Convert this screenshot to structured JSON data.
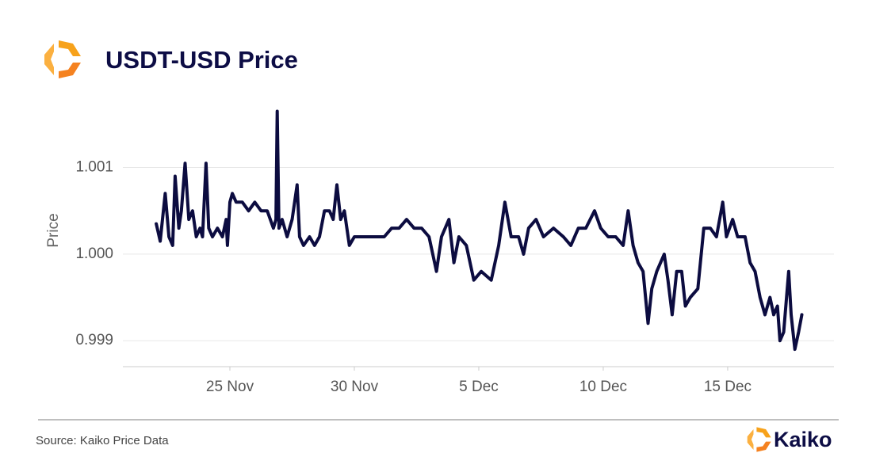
{
  "chart_data": {
    "type": "line",
    "title": "USDT-USD Price",
    "y_label": "Price",
    "source": "Source: Kaiko Price Data",
    "brand": "Kaiko",
    "grid": true,
    "xlim": [
      20.7,
      49.27
    ],
    "ylim": [
      0.9987,
      1.0017
    ],
    "xticks": [
      {
        "value": 25,
        "label": "25 Nov"
      },
      {
        "value": 30,
        "label": "30 Nov"
      },
      {
        "value": 35,
        "label": "5 Dec"
      },
      {
        "value": 40,
        "label": "10 Dec"
      },
      {
        "value": 45,
        "label": "15 Dec"
      }
    ],
    "yticks": [
      0.999,
      {
        "value": 1,
        "label": "1.000"
      },
      1.001
    ],
    "x": [
      22.04,
      22.2,
      22.4,
      22.55,
      22.7,
      22.8,
      22.95,
      23.05,
      23.2,
      23.35,
      23.5,
      23.65,
      23.8,
      23.9,
      24.04,
      24.15,
      24.3,
      24.5,
      24.7,
      24.85,
      24.9,
      25.0,
      25.1,
      25.25,
      25.5,
      25.75,
      26.0,
      26.25,
      26.5,
      26.75,
      26.85,
      26.9,
      26.97,
      27.1,
      27.3,
      27.5,
      27.7,
      27.8,
      27.96,
      28.2,
      28.4,
      28.6,
      28.8,
      29.0,
      29.15,
      29.3,
      29.45,
      29.6,
      29.8,
      30.0,
      30.3,
      30.6,
      30.9,
      31.2,
      31.5,
      31.8,
      32.1,
      32.4,
      32.7,
      33.0,
      33.3,
      33.5,
      33.8,
      34.0,
      34.2,
      34.5,
      34.8,
      35.1,
      35.5,
      35.8,
      36.05,
      36.3,
      36.6,
      36.8,
      37.0,
      37.3,
      37.6,
      38.0,
      38.4,
      38.7,
      39.0,
      39.3,
      39.65,
      39.9,
      40.2,
      40.5,
      40.8,
      41.0,
      41.2,
      41.4,
      41.6,
      41.8,
      41.95,
      42.15,
      42.45,
      42.6,
      42.77,
      42.95,
      43.15,
      43.3,
      43.5,
      43.8,
      44.04,
      44.3,
      44.55,
      44.8,
      44.95,
      45.2,
      45.4,
      45.7,
      45.9,
      46.1,
      46.3,
      46.5,
      46.7,
      46.85,
      47.0,
      47.1,
      47.25,
      47.45,
      47.55,
      47.7,
      47.85,
      47.98
    ],
    "series": [
      {
        "name": "USDT-USD",
        "color": "#0c0c40",
        "values": [
          1.00035,
          1.00015,
          1.0007,
          1.0002,
          1.0001,
          1.0009,
          1.0003,
          1.0005,
          1.00105,
          1.0004,
          1.0005,
          1.0002,
          1.0003,
          1.0002,
          1.00105,
          1.0003,
          1.0002,
          1.0003,
          1.0002,
          1.0004,
          1.0001,
          1.0006,
          1.0007,
          1.0006,
          1.0006,
          1.0005,
          1.0006,
          1.0005,
          1.0005,
          1.0003,
          1.0004,
          1.00165,
          1.0003,
          1.0004,
          1.0002,
          1.0004,
          1.0008,
          1.0002,
          1.0001,
          1.0002,
          1.0001,
          1.0002,
          1.0005,
          1.0005,
          1.0004,
          1.0008,
          1.0004,
          1.0005,
          1.0001,
          1.0002,
          1.0002,
          1.0002,
          1.0002,
          1.0002,
          1.0003,
          1.0003,
          1.0004,
          1.0003,
          1.0003,
          1.0002,
          0.9998,
          1.0002,
          1.0004,
          0.9999,
          1.0002,
          1.0001,
          0.9997,
          0.9998,
          0.9997,
          1.0001,
          1.0006,
          1.0002,
          1.0002,
          1.0,
          1.0003,
          1.0004,
          1.0002,
          1.0003,
          1.0002,
          1.0001,
          1.0003,
          1.0003,
          1.0005,
          1.0003,
          1.0002,
          1.0002,
          1.0001,
          1.0005,
          1.0001,
          0.9999,
          0.9998,
          0.9992,
          0.9996,
          0.9998,
          1.0,
          0.9997,
          0.9993,
          0.9998,
          0.9998,
          0.9994,
          0.9995,
          0.9996,
          1.0003,
          1.0003,
          1.0002,
          1.0006,
          1.0002,
          1.0004,
          1.0002,
          1.0002,
          0.9999,
          0.9998,
          0.9995,
          0.9993,
          0.9995,
          0.9993,
          0.9994,
          0.999,
          0.9991,
          0.9998,
          0.9993,
          0.9989,
          0.9991,
          0.9993
        ]
      }
    ]
  }
}
